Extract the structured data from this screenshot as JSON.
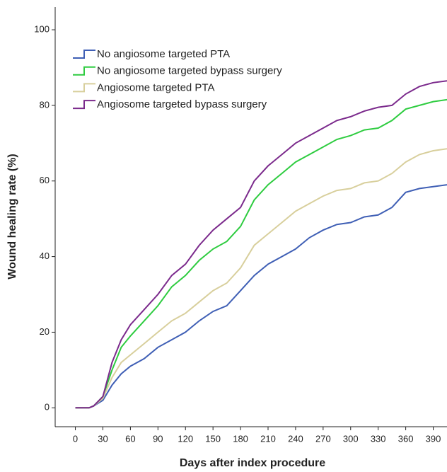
{
  "chart_data": {
    "type": "line",
    "x_label": "Days after index procedure",
    "y_label": "Wound healing rate (%)",
    "x": [
      0,
      15,
      20,
      30,
      40,
      50,
      60,
      75,
      90,
      105,
      120,
      135,
      150,
      165,
      180,
      195,
      210,
      225,
      240,
      255,
      270,
      285,
      300,
      315,
      330,
      345,
      360,
      375,
      390,
      405
    ],
    "series": [
      {
        "name": "No angiosome targeted PTA",
        "color": "#3f5fb5",
        "values": [
          0,
          0,
          0.5,
          2,
          6,
          9,
          11,
          13,
          16,
          18,
          20,
          23,
          25.5,
          27,
          31,
          35,
          38,
          40,
          42,
          45,
          47,
          48.5,
          49,
          50.5,
          51,
          53,
          57,
          58,
          58.5,
          59
        ]
      },
      {
        "name": "No angiosome targeted bypass surgery",
        "color": "#2ecc40",
        "values": [
          0,
          0,
          0.5,
          3,
          10,
          16,
          19,
          23,
          27,
          32,
          35,
          39,
          42,
          44,
          48,
          55,
          59,
          62,
          65,
          67,
          69,
          71,
          72,
          73.5,
          74,
          76,
          79,
          80,
          81,
          81.5
        ]
      },
      {
        "name": "Angiosome targeted PTA",
        "color": "#d8cf9c",
        "values": [
          0,
          0,
          0.5,
          2.5,
          8,
          12,
          14,
          17,
          20,
          23,
          25,
          28,
          31,
          33,
          37,
          43,
          46,
          49,
          52,
          54,
          56,
          57.5,
          58,
          59.5,
          60,
          62,
          65,
          67,
          68,
          68.5
        ]
      },
      {
        "name": "Angiosome targeted bypass surgery",
        "color": "#7b2a8c",
        "values": [
          0,
          0,
          0.5,
          3,
          12,
          18,
          22,
          26,
          30,
          35,
          38,
          43,
          47,
          50,
          53,
          60,
          64,
          67,
          70,
          72,
          74,
          76,
          77,
          78.5,
          79.5,
          80,
          83,
          85,
          86,
          86.5
        ]
      }
    ],
    "xlim": [
      -22,
      405
    ],
    "ylim": [
      -5,
      106
    ],
    "xticks": [
      0,
      30,
      60,
      90,
      120,
      150,
      180,
      210,
      240,
      270,
      300,
      330,
      360,
      390
    ],
    "yticks": [
      0,
      20,
      40,
      60,
      80,
      100
    ],
    "grid": false,
    "legend": "upper left"
  }
}
